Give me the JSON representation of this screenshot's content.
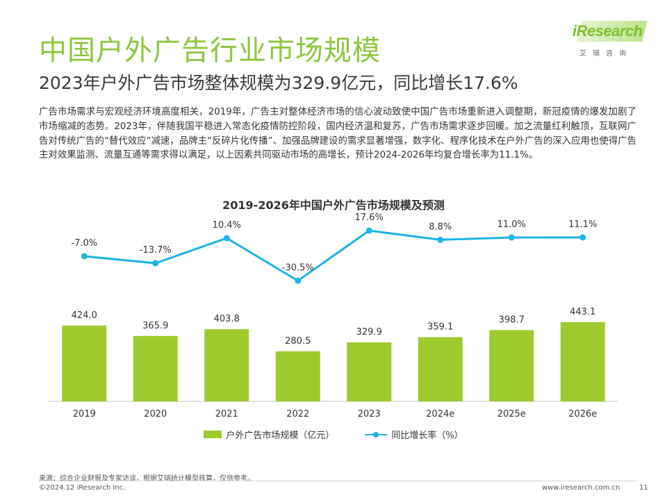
{
  "header": {
    "title": "中国户外广告行业市场规模",
    "subtitle": "2023年户外广告市场整体规模为329.9亿元，同比增长17.6%"
  },
  "logo": {
    "en": "iResearch",
    "cn": "艾瑞咨询"
  },
  "body_text": "广告市场需求与宏观经济环境高度相关，2019年，广告主对整体经济市场的信心波动致使中国广告市场重新进入调整期，新冠疫情的爆发加剧了市场缩减的态势。2023年，伴随我国平稳进入常态化疫情防控阶段，国内经济温和复苏，广告市场需求逐步回暖。加之流量红利触顶，互联网广告对传统广告的“替代效应”减速，品牌主“反碎片化传播”、加强品牌建设的需求显著增强，数字化、程序化技术在户外广告的深入应用也使得广告主对效果监测、流量互通等需求得以满足，以上因素共同驱动市场的高增长，预计2024-2026年均复合增长率为11.1%。",
  "colors": {
    "title": "#8cc63e",
    "bar": "#9dcb2e",
    "line": "#1fb4e6"
  },
  "chart_data": {
    "type": "bar",
    "title": "2019-2026年中国户外广告市场规模及预测",
    "categories": [
      "2019",
      "2020",
      "2021",
      "2022",
      "2023",
      "2024e",
      "2025e",
      "2026e"
    ],
    "series": [
      {
        "name": "户外广告市场规模（亿元）",
        "type": "bar",
        "values": [
          424.0,
          365.9,
          403.8,
          280.5,
          329.9,
          359.1,
          398.7,
          443.1
        ],
        "labels": [
          "424.0",
          "365.9",
          "403.8",
          "280.5",
          "329.9",
          "359.1",
          "398.7",
          "443.1"
        ]
      },
      {
        "name": "同比增长率（%）",
        "type": "line",
        "values": [
          -7.0,
          -13.7,
          10.4,
          -30.5,
          17.6,
          8.8,
          11.0,
          11.1
        ],
        "labels": [
          "-7.0%",
          "-13.7%",
          "10.4%",
          "-30.5%",
          "17.6%",
          "8.8%",
          "11.0%",
          "11.1%"
        ]
      }
    ],
    "legend_position": "bottom",
    "grid": false
  },
  "footer": {
    "source": "来源：综合企业财报及专家访谈，根据艾瑞统计模型核算，仅供参考。",
    "copyright": "©2024.12 iResearch Inc.",
    "website": "www.iresearch.com.cn",
    "page": "11"
  }
}
